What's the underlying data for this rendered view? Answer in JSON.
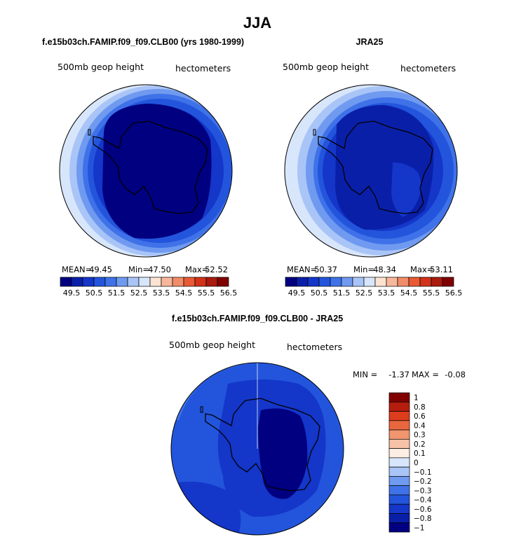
{
  "figure_title": "JJA",
  "colors": {
    "scale_abs": [
      "#000080",
      "#0a1fa8",
      "#1436c9",
      "#2355dc",
      "#3f72e8",
      "#6f9af0",
      "#a9c5f7",
      "#d8e6fb",
      "#fde3d2",
      "#f7b79b",
      "#f08c68",
      "#e85a34",
      "#d23219",
      "#aa1a0e",
      "#800000"
    ],
    "scale_diff": [
      "#000080",
      "#0a1fa8",
      "#1436c9",
      "#2355dc",
      "#3f72e8",
      "#6f9af0",
      "#a9c5f7",
      "#d8e6fb",
      "#fdeee4",
      "#f7c2a8",
      "#f1956f",
      "#e9673f",
      "#dc3d1c",
      "#b51d0e",
      "#800000"
    ]
  },
  "chart_data": [
    {
      "type": "polar-contour-map",
      "title": "f.e15b03ch.FAMIP.f09_f09.CLB00 (yrs 1980-1999)",
      "variable": "500mb geop height",
      "units": "hectometers",
      "stats": {
        "mean_label": "MEAN=",
        "mean": "49.45",
        "min_label": "Min=",
        "min": "47.50",
        "max_label": "Max=",
        "max": "52.52"
      },
      "colorbar_ticks": [
        "49.5",
        "50.5",
        "51.5",
        "52.5",
        "53.5",
        "54.5",
        "55.5",
        "56.5"
      ]
    },
    {
      "type": "polar-contour-map",
      "title": "JRA25",
      "variable": "500mb geop height",
      "units": "hectometers",
      "stats": {
        "mean_label": "MEAN=",
        "mean": "50.37",
        "min_label": "Min=",
        "min": "48.34",
        "max_label": "Max=",
        "max": "53.11"
      },
      "colorbar_ticks": [
        "49.5",
        "50.5",
        "51.5",
        "52.5",
        "53.5",
        "54.5",
        "55.5",
        "56.5"
      ]
    },
    {
      "type": "polar-contour-map",
      "title": "f.e15b03ch.FAMIP.f09_f09.CLB00 - JRA25",
      "variable": "500mb geop height",
      "units": "hectometers",
      "stats": {
        "min_label": "MIN =",
        "min": "-1.37",
        "max_label": "MAX =",
        "max": "-0.08"
      },
      "colorbar_levels": [
        "1",
        "0.8",
        "0.6",
        "0.4",
        "0.3",
        "0.2",
        "0.1",
        "0",
        "−0.1",
        "−0.2",
        "−0.3",
        "−0.4",
        "−0.6",
        "−0.8",
        "−1"
      ]
    }
  ]
}
